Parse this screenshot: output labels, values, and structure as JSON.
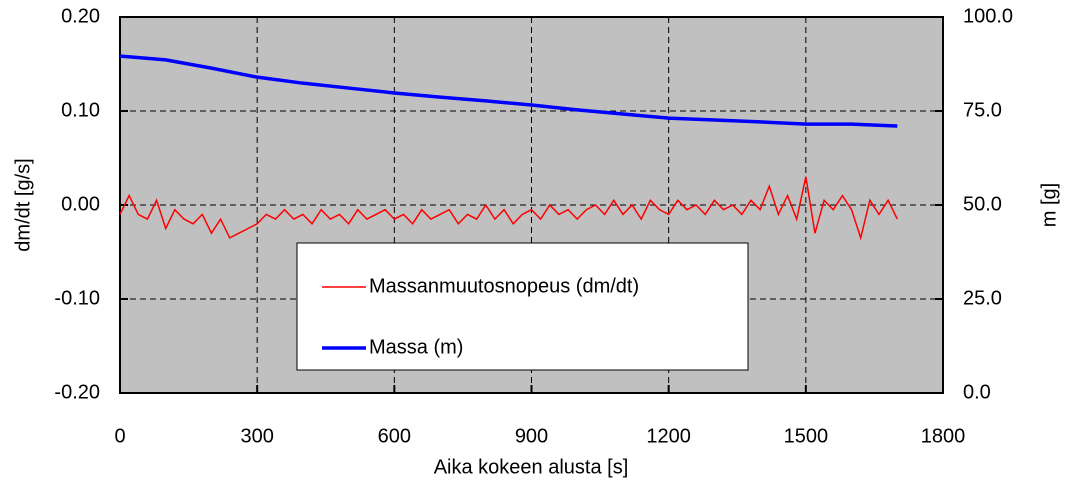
{
  "chart_data": {
    "type": "line",
    "x_label": "Aika kokeen alusta  [s]",
    "y_label": "dm/dt  [g/s]",
    "y2_label": "m  [g]",
    "xlim": [
      0,
      1800
    ],
    "xticks": [
      0,
      300,
      600,
      900,
      1200,
      1500,
      1800
    ],
    "ylim": [
      -0.2,
      0.2
    ],
    "yticks": [
      {
        "value": -0.2,
        "label": "-0.20"
      },
      {
        "value": -0.1,
        "label": "-0.10"
      },
      {
        "value": 0,
        "label": "0.00"
      },
      {
        "value": 0.1,
        "label": "0.10"
      },
      {
        "value": 0.2,
        "label": "0.20"
      }
    ],
    "y2lim": [
      0,
      100
    ],
    "y2ticks": [
      {
        "value": 0,
        "label": "0.0"
      },
      {
        "value": 25,
        "label": "25.0"
      },
      {
        "value": 50,
        "label": "50.0"
      },
      {
        "value": 75,
        "label": "75.0"
      },
      {
        "value": 100,
        "label": "100.0"
      }
    ],
    "grid": true,
    "series": [
      {
        "name": "Massanmuutosnopeus (dm/dt)",
        "color": "#ff0000",
        "x": [
          0,
          20,
          40,
          60,
          80,
          100,
          120,
          140,
          160,
          180,
          200,
          220,
          240,
          260,
          280,
          300,
          320,
          340,
          360,
          380,
          400,
          420,
          440,
          460,
          480,
          500,
          520,
          540,
          560,
          580,
          600,
          620,
          640,
          660,
          680,
          700,
          720,
          740,
          760,
          780,
          800,
          820,
          840,
          860,
          880,
          900,
          920,
          940,
          960,
          980,
          1000,
          1020,
          1040,
          1060,
          1080,
          1100,
          1120,
          1140,
          1160,
          1180,
          1200,
          1220,
          1240,
          1260,
          1280,
          1300,
          1320,
          1340,
          1360,
          1380,
          1400,
          1420,
          1440,
          1460,
          1480,
          1500,
          1520,
          1540,
          1560,
          1580,
          1600,
          1620,
          1640,
          1660,
          1680,
          1700
        ],
        "values": [
          -0.01,
          0.01,
          -0.01,
          -0.015,
          0.005,
          -0.025,
          -0.005,
          -0.015,
          -0.02,
          -0.01,
          -0.03,
          -0.015,
          -0.035,
          -0.03,
          -0.025,
          -0.02,
          -0.01,
          -0.015,
          -0.005,
          -0.015,
          -0.01,
          -0.02,
          -0.005,
          -0.015,
          -0.01,
          -0.02,
          -0.005,
          -0.015,
          -0.01,
          -0.005,
          -0.015,
          -0.01,
          -0.02,
          -0.005,
          -0.015,
          -0.01,
          -0.005,
          -0.02,
          -0.01,
          -0.015,
          0,
          -0.015,
          -0.005,
          -0.02,
          -0.01,
          -0.005,
          -0.015,
          0,
          -0.01,
          -0.005,
          -0.015,
          -0.005,
          0,
          -0.01,
          0.005,
          -0.01,
          0,
          -0.015,
          0.005,
          -0.005,
          -0.01,
          0.005,
          -0.005,
          0,
          -0.01,
          0.005,
          -0.005,
          0,
          -0.01,
          0.005,
          -0.005,
          0.02,
          -0.01,
          0.01,
          -0.015,
          0.03,
          -0.03,
          0.005,
          -0.005,
          0.01,
          -0.005,
          -0.035,
          0.005,
          -0.01,
          0.005,
          -0.015
        ]
      },
      {
        "name": "Massa (m)",
        "color": "#0000ff",
        "axis": "y2",
        "x": [
          0,
          100,
          200,
          300,
          400,
          500,
          600,
          700,
          800,
          900,
          1000,
          1100,
          1200,
          1300,
          1400,
          1500,
          1600,
          1700
        ],
        "values": [
          89.6,
          88.6,
          86.4,
          84.0,
          82.4,
          81.1,
          79.8,
          78.7,
          77.7,
          76.6,
          75.3,
          74.2,
          73.1,
          72.6,
          72.1,
          71.5,
          71.5,
          71.0
        ]
      }
    ]
  }
}
